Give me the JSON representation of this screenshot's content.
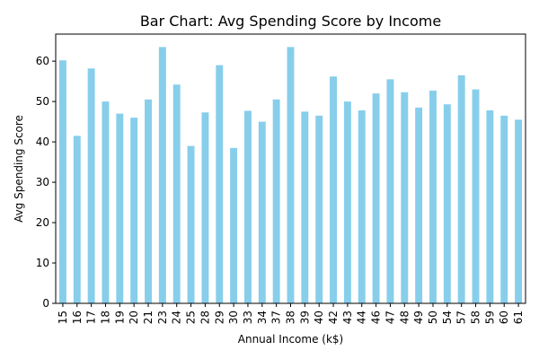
{
  "chart_data": {
    "type": "bar",
    "title": "Bar Chart: Avg Spending Score by Income",
    "xlabel": "Annual Income (k$)",
    "ylabel": "Avg Spending Score",
    "categories": [
      "15",
      "16",
      "17",
      "18",
      "19",
      "20",
      "21",
      "23",
      "24",
      "25",
      "28",
      "29",
      "30",
      "33",
      "34",
      "37",
      "38",
      "39",
      "40",
      "42",
      "43",
      "44",
      "46",
      "47",
      "48",
      "49",
      "50",
      "54",
      "57",
      "58",
      "59",
      "60",
      "61"
    ],
    "values": [
      60.2,
      41.5,
      58.2,
      50.0,
      47.0,
      46.0,
      50.5,
      63.5,
      54.2,
      39.0,
      47.3,
      59.0,
      38.5,
      47.7,
      45.0,
      50.5,
      63.5,
      47.5,
      46.5,
      56.2,
      50.0,
      47.8,
      52.0,
      55.5,
      52.3,
      48.5,
      52.7,
      49.3,
      56.5,
      53.0,
      47.8,
      46.5,
      45.5
    ],
    "ylim": [
      0,
      66.7
    ],
    "yticks": [
      0,
      10,
      20,
      30,
      40,
      50,
      60
    ],
    "grid": false,
    "legend": "none",
    "colors": {
      "bar": "#87ceeb",
      "axis": "#000000",
      "background": "#ffffff"
    }
  }
}
